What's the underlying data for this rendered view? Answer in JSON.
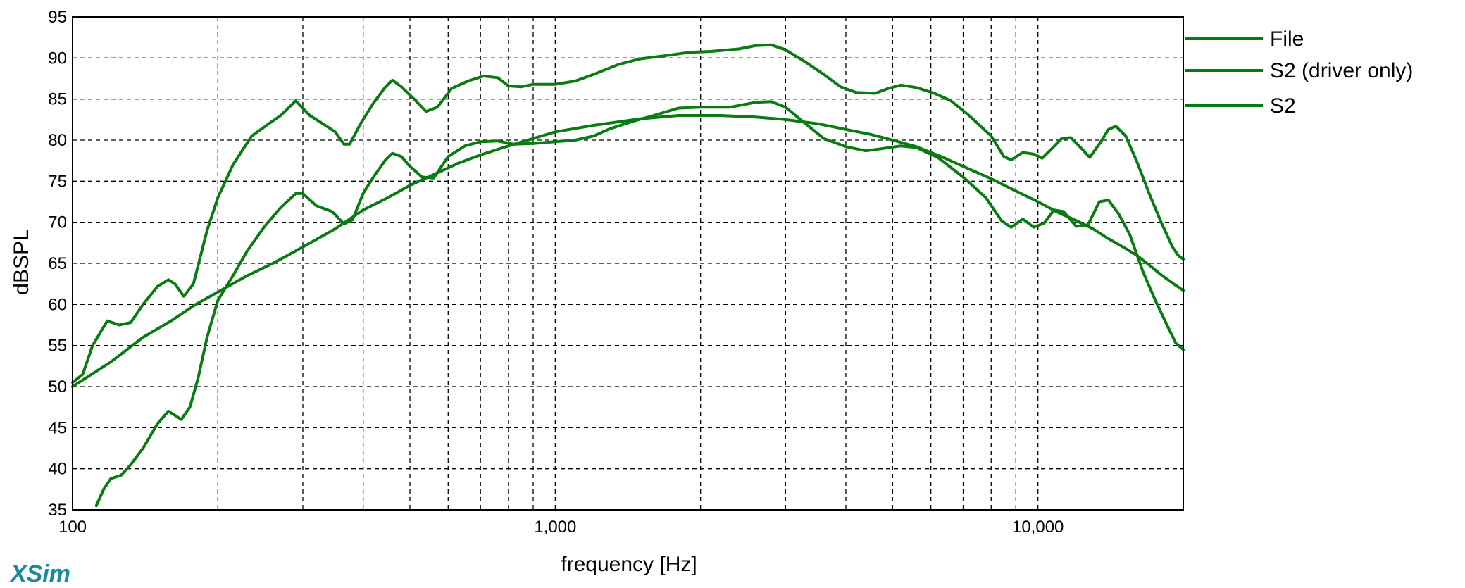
{
  "app": {
    "brand": "XSim"
  },
  "chart_data": {
    "type": "line",
    "title": "",
    "xlabel": "frequency [Hz]",
    "ylabel": "dBSPL",
    "xscale": "log",
    "xlim": [
      100,
      20000
    ],
    "ylim": [
      35,
      95
    ],
    "grid": true,
    "legend_position": "right",
    "x_tick_labels": [
      {
        "value": 100,
        "label": "100"
      },
      {
        "value": 1000,
        "label": "1,000"
      },
      {
        "value": 10000,
        "label": "10,000"
      }
    ],
    "y_ticks": [
      35,
      40,
      45,
      50,
      55,
      60,
      65,
      70,
      75,
      80,
      85,
      90,
      95
    ],
    "colors": {
      "series": "#0a7a12",
      "grid": "#000000"
    },
    "series": [
      {
        "name": "File",
        "points": [
          [
            100,
            50.5
          ],
          [
            105,
            51.5
          ],
          [
            110,
            55
          ],
          [
            118,
            58
          ],
          [
            125,
            57.5
          ],
          [
            132,
            57.8
          ],
          [
            140,
            60
          ],
          [
            150,
            62.2
          ],
          [
            158,
            63
          ],
          [
            163,
            62.5
          ],
          [
            170,
            61
          ],
          [
            178,
            62.5
          ],
          [
            190,
            69
          ],
          [
            200,
            73
          ],
          [
            215,
            77
          ],
          [
            235,
            80.5
          ],
          [
            255,
            82
          ],
          [
            270,
            83
          ],
          [
            290,
            84.8
          ],
          [
            310,
            83
          ],
          [
            330,
            82
          ],
          [
            350,
            81
          ],
          [
            365,
            79.5
          ],
          [
            375,
            79.5
          ],
          [
            395,
            82
          ],
          [
            420,
            84.5
          ],
          [
            445,
            86.5
          ],
          [
            460,
            87.3
          ],
          [
            480,
            86.5
          ],
          [
            510,
            85
          ],
          [
            540,
            83.5
          ],
          [
            570,
            84
          ],
          [
            610,
            86.3
          ],
          [
            660,
            87.2
          ],
          [
            710,
            87.8
          ],
          [
            760,
            87.6
          ],
          [
            800,
            86.6
          ],
          [
            850,
            86.5
          ],
          [
            900,
            86.8
          ],
          [
            1000,
            86.8
          ],
          [
            1100,
            87.2
          ],
          [
            1200,
            88
          ],
          [
            1350,
            89.2
          ],
          [
            1500,
            89.9
          ],
          [
            1700,
            90.3
          ],
          [
            1900,
            90.7
          ],
          [
            2100,
            90.8
          ],
          [
            2400,
            91.1
          ],
          [
            2600,
            91.5
          ],
          [
            2800,
            91.6
          ],
          [
            3000,
            91
          ],
          [
            3300,
            89.5
          ],
          [
            3600,
            88
          ],
          [
            3900,
            86.5
          ],
          [
            4200,
            85.8
          ],
          [
            4600,
            85.7
          ],
          [
            4900,
            86.3
          ],
          [
            5200,
            86.7
          ],
          [
            5600,
            86.4
          ],
          [
            6100,
            85.7
          ],
          [
            6600,
            84.8
          ],
          [
            7200,
            83
          ],
          [
            8000,
            80.5
          ],
          [
            8500,
            78
          ],
          [
            8800,
            77.6
          ],
          [
            9300,
            78.5
          ],
          [
            9800,
            78.3
          ],
          [
            10200,
            77.8
          ],
          [
            10700,
            79
          ],
          [
            11200,
            80.2
          ],
          [
            11700,
            80.3
          ],
          [
            12300,
            79
          ],
          [
            12800,
            77.9
          ],
          [
            13500,
            79.8
          ],
          [
            14000,
            81.3
          ],
          [
            14500,
            81.7
          ],
          [
            15200,
            80.5
          ],
          [
            16000,
            77.5
          ],
          [
            17000,
            73.5
          ],
          [
            18000,
            70
          ],
          [
            19000,
            67
          ],
          [
            19500,
            66
          ],
          [
            20000,
            65.5
          ]
        ]
      },
      {
        "name": "S2 (driver only)",
        "points": [
          [
            100,
            50
          ],
          [
            120,
            53
          ],
          [
            140,
            56
          ],
          [
            160,
            58
          ],
          [
            180,
            60
          ],
          [
            200,
            61.5
          ],
          [
            230,
            63.5
          ],
          [
            260,
            65
          ],
          [
            300,
            67
          ],
          [
            350,
            69.2
          ],
          [
            400,
            71.5
          ],
          [
            450,
            73
          ],
          [
            500,
            74.5
          ],
          [
            560,
            75.8
          ],
          [
            630,
            77.2
          ],
          [
            700,
            78.2
          ],
          [
            800,
            79.3
          ],
          [
            900,
            80.2
          ],
          [
            1000,
            81
          ],
          [
            1200,
            81.8
          ],
          [
            1500,
            82.6
          ],
          [
            1800,
            83
          ],
          [
            2200,
            83
          ],
          [
            2600,
            82.8
          ],
          [
            3000,
            82.5
          ],
          [
            3500,
            82
          ],
          [
            4000,
            81.3
          ],
          [
            4500,
            80.7
          ],
          [
            5000,
            80
          ],
          [
            5600,
            79.2
          ],
          [
            6300,
            78
          ],
          [
            7000,
            76.8
          ],
          [
            8000,
            75.3
          ],
          [
            9000,
            73.8
          ],
          [
            10000,
            72.5
          ],
          [
            11000,
            71.2
          ],
          [
            12000,
            70.2
          ],
          [
            13000,
            69.2
          ],
          [
            14000,
            68
          ],
          [
            15000,
            67
          ],
          [
            16000,
            66
          ],
          [
            17000,
            64.8
          ],
          [
            18000,
            63.6
          ],
          [
            19000,
            62.6
          ],
          [
            20000,
            61.7
          ]
        ]
      },
      {
        "name": "S2",
        "points": [
          [
            112,
            35.5
          ],
          [
            116,
            37.5
          ],
          [
            120,
            38.8
          ],
          [
            126,
            39.2
          ],
          [
            132,
            40.5
          ],
          [
            140,
            42.5
          ],
          [
            150,
            45.5
          ],
          [
            158,
            47
          ],
          [
            163,
            46.5
          ],
          [
            168,
            46
          ],
          [
            175,
            47.5
          ],
          [
            182,
            51
          ],
          [
            190,
            56
          ],
          [
            200,
            60.5
          ],
          [
            215,
            63.5
          ],
          [
            230,
            66.5
          ],
          [
            250,
            69.5
          ],
          [
            270,
            71.8
          ],
          [
            290,
            73.5
          ],
          [
            300,
            73.5
          ],
          [
            320,
            72
          ],
          [
            345,
            71.3
          ],
          [
            365,
            69.8
          ],
          [
            380,
            70.3
          ],
          [
            400,
            73.5
          ],
          [
            420,
            75.5
          ],
          [
            445,
            77.6
          ],
          [
            460,
            78.4
          ],
          [
            480,
            78
          ],
          [
            500,
            76.8
          ],
          [
            530,
            75.5
          ],
          [
            560,
            75.4
          ],
          [
            600,
            78
          ],
          [
            650,
            79.3
          ],
          [
            700,
            79.8
          ],
          [
            760,
            79.9
          ],
          [
            820,
            79.5
          ],
          [
            900,
            79.6
          ],
          [
            1000,
            79.8
          ],
          [
            1100,
            80
          ],
          [
            1200,
            80.5
          ],
          [
            1300,
            81.4
          ],
          [
            1450,
            82.3
          ],
          [
            1600,
            83
          ],
          [
            1800,
            83.9
          ],
          [
            2000,
            84
          ],
          [
            2300,
            84
          ],
          [
            2600,
            84.6
          ],
          [
            2800,
            84.7
          ],
          [
            3000,
            84
          ],
          [
            3300,
            82
          ],
          [
            3600,
            80.2
          ],
          [
            4000,
            79.2
          ],
          [
            4400,
            78.7
          ],
          [
            4800,
            79
          ],
          [
            5200,
            79.3
          ],
          [
            5600,
            79.1
          ],
          [
            6200,
            77.9
          ],
          [
            7000,
            75.5
          ],
          [
            7800,
            73
          ],
          [
            8400,
            70.2
          ],
          [
            8800,
            69.4
          ],
          [
            9300,
            70.4
          ],
          [
            9800,
            69.4
          ],
          [
            10300,
            69.9
          ],
          [
            10800,
            71.5
          ],
          [
            11300,
            71.3
          ],
          [
            12000,
            69.5
          ],
          [
            12700,
            69.7
          ],
          [
            13400,
            72.5
          ],
          [
            14000,
            72.7
          ],
          [
            14700,
            71
          ],
          [
            15500,
            68.5
          ],
          [
            16500,
            64
          ],
          [
            17500,
            60.5
          ],
          [
            18500,
            57.5
          ],
          [
            19300,
            55.3
          ],
          [
            20000,
            54.5
          ]
        ]
      }
    ]
  }
}
